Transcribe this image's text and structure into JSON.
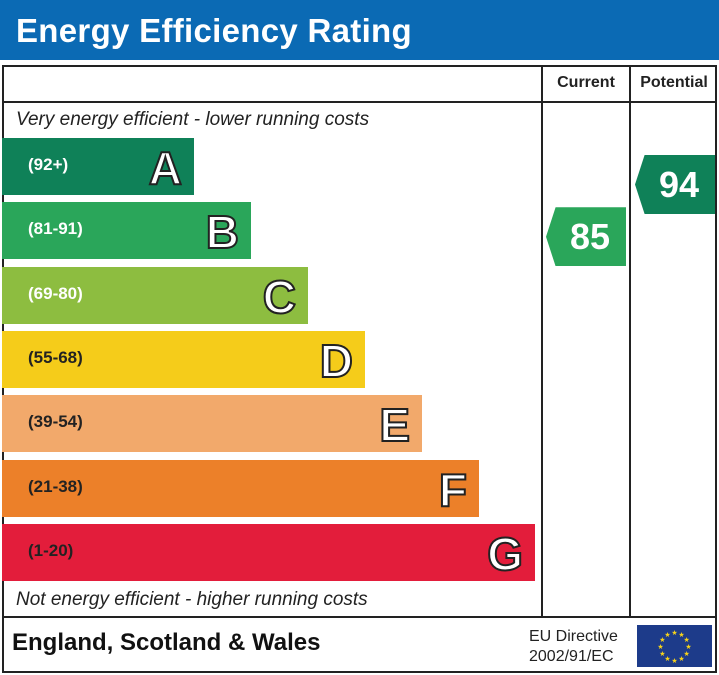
{
  "title": "Energy Efficiency Rating",
  "columns": {
    "current": "Current",
    "potential": "Potential"
  },
  "top_note": "Very energy efficient - lower running costs",
  "bottom_note": "Not energy efficient - higher running costs",
  "footer": {
    "region": "England, Scotland & Wales",
    "directive_line1": "EU Directive",
    "directive_line2": "2002/91/EC",
    "flag_icon": "eu-flag-icon"
  },
  "chart_data": {
    "type": "bar",
    "title": "Energy Efficiency Rating",
    "bands": [
      {
        "letter": "A",
        "range": "(92+)",
        "color": "#0f8158"
      },
      {
        "letter": "B",
        "range": "(81-91)",
        "color": "#2aa65a"
      },
      {
        "letter": "C",
        "range": "(69-80)",
        "color": "#8dbd40"
      },
      {
        "letter": "D",
        "range": "(55-68)",
        "color": "#f5cc1a"
      },
      {
        "letter": "E",
        "range": "(39-54)",
        "color": "#f2a96b"
      },
      {
        "letter": "F",
        "range": "(21-38)",
        "color": "#ec8029"
      },
      {
        "letter": "G",
        "range": "(1-20)",
        "color": "#e31d3b"
      }
    ],
    "current": {
      "value": 85,
      "band": "B",
      "color": "#2aa65a"
    },
    "potential": {
      "value": 94,
      "band": "A",
      "color": "#0f8158"
    }
  }
}
